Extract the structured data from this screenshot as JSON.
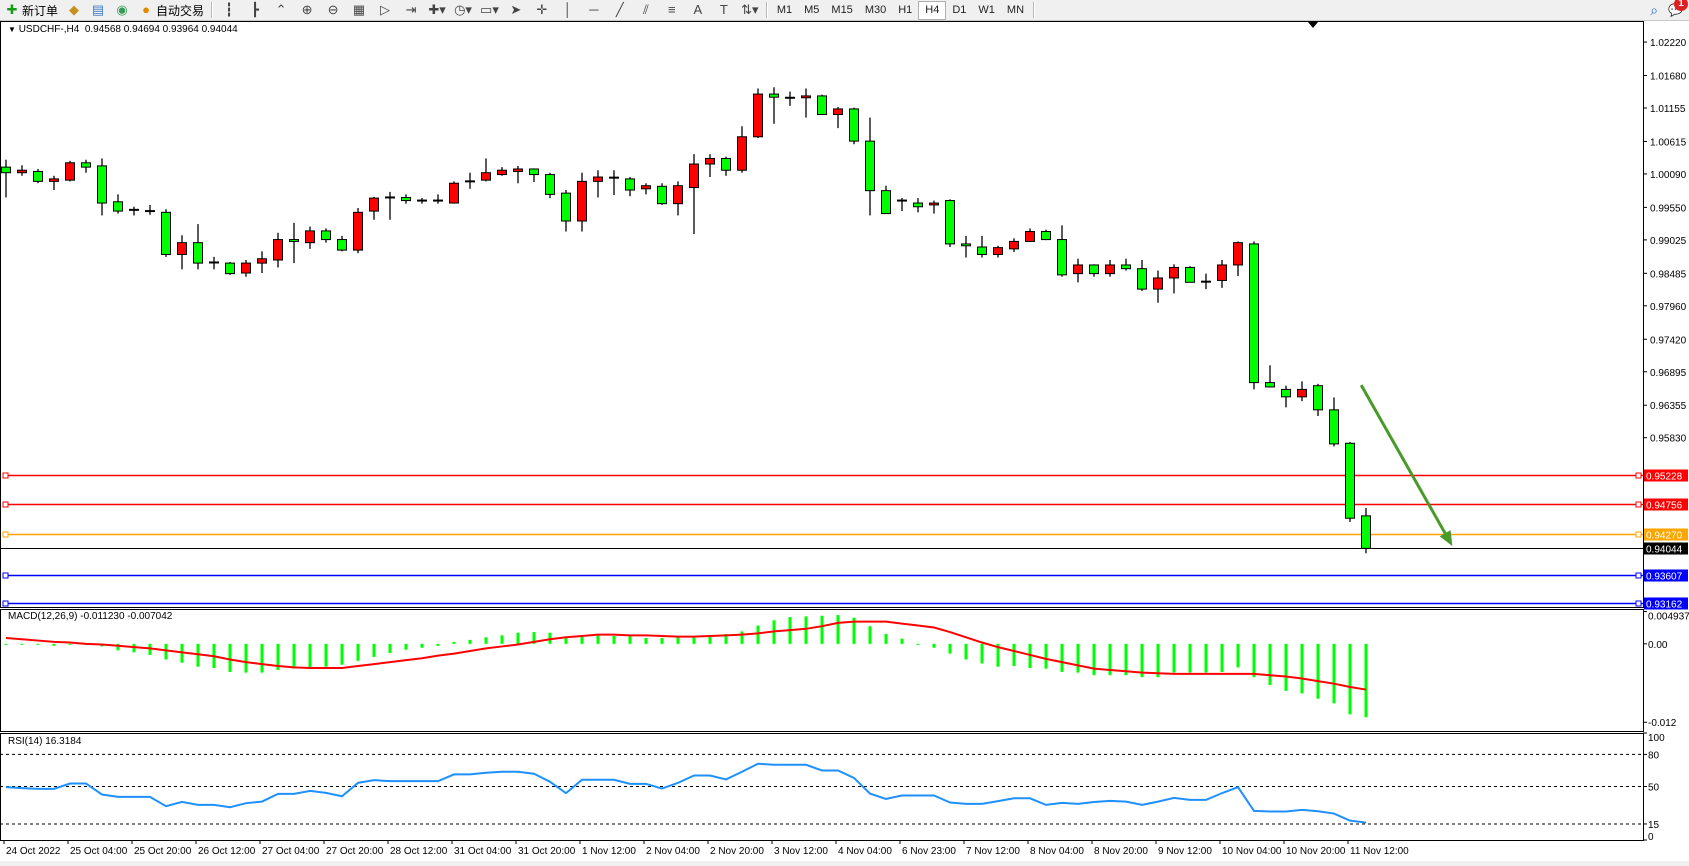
{
  "toolbar": {
    "items": [
      {
        "name": "new-order-button",
        "icon": "new-order-icon",
        "glyph": "✚",
        "color": "#1a9a1a",
        "label": "新订单"
      },
      {
        "name": "metaeditor-button",
        "icon": "metaeditor-icon",
        "glyph": "◆",
        "color": "#c89020",
        "label": ""
      },
      {
        "name": "terminal-button",
        "icon": "terminal-icon",
        "glyph": "▤",
        "color": "#3a7ac8",
        "label": ""
      },
      {
        "name": "signals-button",
        "icon": "signals-icon",
        "glyph": "◉",
        "color": "#3a9a5a",
        "label": ""
      },
      {
        "name": "autotrading-button",
        "icon": "autotrading-icon",
        "glyph": "●",
        "color": "#e08a00",
        "label": "自动交易"
      }
    ],
    "chart_tools": [
      {
        "name": "bar-chart-button",
        "icon": "bar-chart-icon",
        "glyph": "┇"
      },
      {
        "name": "candlestick-button",
        "icon": "candlestick-icon",
        "glyph": "┣"
      },
      {
        "name": "line-chart-button",
        "icon": "line-chart-icon",
        "glyph": "⌃"
      },
      {
        "name": "zoom-in-button",
        "icon": "zoom-in-icon",
        "glyph": "⊕"
      },
      {
        "name": "zoom-out-button",
        "icon": "zoom-out-icon",
        "glyph": "⊖"
      },
      {
        "name": "tile-windows-button",
        "icon": "tile-windows-icon",
        "glyph": "▦"
      },
      {
        "name": "auto-scroll-button",
        "icon": "auto-scroll-icon",
        "glyph": "▷"
      },
      {
        "name": "chart-shift-button",
        "icon": "chart-shift-icon",
        "glyph": "⇥"
      },
      {
        "name": "indicators-button",
        "icon": "indicators-icon",
        "glyph": "✚▾"
      },
      {
        "name": "periods-button",
        "icon": "clock-icon",
        "glyph": "◷▾"
      },
      {
        "name": "templates-button",
        "icon": "templates-icon",
        "glyph": "▭▾"
      },
      {
        "name": "cursor-button",
        "icon": "cursor-icon",
        "glyph": "➤"
      },
      {
        "name": "crosshair-button",
        "icon": "crosshair-icon",
        "glyph": "✛"
      },
      {
        "name": "vertical-line-button",
        "icon": "vertical-line-icon",
        "glyph": "│"
      },
      {
        "name": "horizontal-line-button",
        "icon": "horizontal-line-icon",
        "glyph": "─"
      },
      {
        "name": "trendline-button",
        "icon": "trendline-icon",
        "glyph": "╱"
      },
      {
        "name": "equidistant-channel-button",
        "icon": "channel-icon",
        "glyph": "⫽"
      },
      {
        "name": "fibonacci-button",
        "icon": "fibonacci-icon",
        "glyph": "≡"
      },
      {
        "name": "text-button",
        "icon": "text-icon",
        "glyph": "A"
      },
      {
        "name": "text-label-button",
        "icon": "text-label-icon",
        "glyph": "T"
      },
      {
        "name": "arrows-button",
        "icon": "arrows-icon",
        "glyph": "⇅▾"
      }
    ],
    "timeframes": [
      "M1",
      "M5",
      "M15",
      "M30",
      "H1",
      "H4",
      "D1",
      "W1",
      "MN"
    ],
    "active_timeframe": "H4",
    "notification_count": "1"
  },
  "chart": {
    "symbol_info": "USDCHF-,H4  0.94568 0.94694 0.93964 0.94044",
    "bull_color": "#ff0000",
    "bear_color": "#00ff00",
    "price_ticks": [
      "1.02220",
      "1.01680",
      "1.01155",
      "1.00615",
      "1.00090",
      "0.99550",
      "0.99025",
      "0.98485",
      "0.97960",
      "0.97420",
      "0.96895",
      "0.96355",
      "0.95830"
    ],
    "ylim": [
      0.93096,
      1.0256
    ],
    "hlines": [
      {
        "price": 0.95228,
        "label": "0.95228",
        "color": "#ff0000"
      },
      {
        "price": 0.94756,
        "label": "0.94756",
        "color": "#ff0000"
      },
      {
        "price": 0.9427,
        "label": "0.94270",
        "color": "#ffa500"
      },
      {
        "price": 0.93607,
        "label": "0.93607",
        "color": "#0000ff"
      },
      {
        "price": 0.93162,
        "label": "0.93162",
        "color": "#0000ff"
      }
    ],
    "bid": {
      "price": 0.94044,
      "label": "0.94044"
    },
    "arrow": {
      "from": [
        84.7,
        0.9668
      ],
      "to": [
        90.4,
        0.9408
      ],
      "color": "#4a9a2a"
    },
    "time_labels": [
      "24 Oct 2022",
      "25 Oct 04:00",
      "25 Oct 20:00",
      "26 Oct 12:00",
      "27 Oct 04:00",
      "27 Oct 20:00",
      "28 Oct 12:00",
      "31 Oct 04:00",
      "31 Oct 20:00",
      "1 Nov 12:00",
      "2 Nov 04:00",
      "2 Nov 20:00",
      "3 Nov 12:00",
      "4 Nov 04:00",
      "6 Nov 23:00",
      "7 Nov 12:00",
      "8 Nov 04:00",
      "8 Nov 20:00",
      "9 Nov 12:00",
      "10 Nov 04:00",
      "10 Nov 20:00",
      "11 Nov 12:00"
    ]
  },
  "chart_data": {
    "type": "candlestick",
    "ohlc": [
      [
        1.002,
        1.0032,
        0.9971,
        1.0011
      ],
      [
        1.0011,
        1.0023,
        1.0006,
        1.0015
      ],
      [
        1.0013,
        1.0017,
        0.9994,
        0.9997
      ],
      [
        0.9997,
        1.0006,
        0.9983,
        1.0001
      ],
      [
        0.9999,
        1.003,
        0.9997,
        1.0027
      ],
      [
        1.0027,
        1.0032,
        1.0011,
        1.002
      ],
      [
        1.0022,
        1.0034,
        0.9942,
        0.9962
      ],
      [
        0.9964,
        0.9976,
        0.9945,
        0.9949
      ],
      [
        0.995,
        0.9956,
        0.9942,
        0.9951
      ],
      [
        0.9949,
        0.9959,
        0.9943,
        0.9949
      ],
      [
        0.9947,
        0.9952,
        0.9875,
        0.9879
      ],
      [
        0.9879,
        0.991,
        0.9855,
        0.9898
      ],
      [
        0.9898,
        0.9928,
        0.9855,
        0.9865
      ],
      [
        0.9865,
        0.9875,
        0.9855,
        0.9866
      ],
      [
        0.9865,
        0.9867,
        0.9846,
        0.9848
      ],
      [
        0.9849,
        0.987,
        0.9843,
        0.9865
      ],
      [
        0.9865,
        0.9884,
        0.9849,
        0.9872
      ],
      [
        0.987,
        0.9914,
        0.9858,
        0.9903
      ],
      [
        0.9903,
        0.993,
        0.9865,
        0.99
      ],
      [
        0.9898,
        0.9924,
        0.9888,
        0.9917
      ],
      [
        0.9917,
        0.9921,
        0.9898,
        0.9903
      ],
      [
        0.9903,
        0.9909,
        0.9884,
        0.9886
      ],
      [
        0.9886,
        0.9954,
        0.9881,
        0.9947
      ],
      [
        0.9949,
        0.9972,
        0.9935,
        0.997
      ],
      [
        0.997,
        0.998,
        0.9935,
        0.9971
      ],
      [
        0.9971,
        0.9976,
        0.9961,
        0.9966
      ],
      [
        0.9966,
        0.997,
        0.9961,
        0.9966
      ],
      [
        0.9966,
        0.9976,
        0.9961,
        0.9966
      ],
      [
        0.9962,
        0.9997,
        0.9961,
        0.9994
      ],
      [
        0.9997,
        1.0011,
        0.9985,
        0.9997
      ],
      [
        0.9999,
        1.0034,
        0.9997,
        1.0011
      ],
      [
        1.0008,
        1.002,
        1.0006,
        1.0015
      ],
      [
        1.0013,
        1.0022,
        0.9994,
        1.0017
      ],
      [
        1.0017,
        1.0018,
        0.9996,
        1.0008
      ],
      [
        1.0008,
        1.0011,
        0.997,
        0.9976
      ],
      [
        0.9978,
        0.9983,
        0.9916,
        0.9933
      ],
      [
        0.9933,
        1.0011,
        0.9916,
        0.9997
      ],
      [
        0.9997,
        1.0015,
        0.9971,
        1.0004
      ],
      [
        1.0003,
        1.0015,
        0.9975,
        1.0003
      ],
      [
        1.0001,
        1.0004,
        0.9973,
        0.9983
      ],
      [
        0.9985,
        0.9994,
        0.9976,
        0.999
      ],
      [
        0.9989,
        0.9994,
        0.9959,
        0.9961
      ],
      [
        0.9961,
        0.9997,
        0.9942,
        0.999
      ],
      [
        0.9987,
        1.0041,
        0.9912,
        1.0025
      ],
      [
        1.0025,
        1.0041,
        1.0004,
        1.0034
      ],
      [
        1.0034,
        1.0037,
        1.0006,
        1.0015
      ],
      [
        1.0015,
        1.0086,
        1.0011,
        1.0069
      ],
      [
        1.0069,
        1.0147,
        1.0067,
        1.0138
      ],
      [
        1.0138,
        1.0149,
        1.009,
        1.0133
      ],
      [
        1.0132,
        1.0142,
        1.0119,
        1.0132
      ],
      [
        1.0132,
        1.0147,
        1.01,
        1.0135
      ],
      [
        1.0135,
        1.0137,
        1.0105,
        1.0105
      ],
      [
        1.0105,
        1.0117,
        1.0083,
        1.0114
      ],
      [
        1.0114,
        1.0116,
        1.0057,
        1.0062
      ],
      [
        1.0062,
        1.01,
        0.9942,
        0.9982
      ],
      [
        0.9982,
        0.999,
        0.9945,
        0.9945
      ],
      [
        0.9966,
        0.997,
        0.9949,
        0.9966
      ],
      [
        0.9962,
        0.997,
        0.9947,
        0.9956
      ],
      [
        0.9959,
        0.9966,
        0.9945,
        0.9962
      ],
      [
        0.9966,
        0.9968,
        0.9891,
        0.9896
      ],
      [
        0.9896,
        0.9909,
        0.9874,
        0.9893
      ],
      [
        0.9891,
        0.9909,
        0.9874,
        0.9879
      ],
      [
        0.9879,
        0.9893,
        0.9874,
        0.989
      ],
      [
        0.9888,
        0.9905,
        0.9883,
        0.99
      ],
      [
        0.99,
        0.9921,
        0.9899,
        0.9916
      ],
      [
        0.9916,
        0.9919,
        0.9902,
        0.9903
      ],
      [
        0.9903,
        0.9926,
        0.9843,
        0.9846
      ],
      [
        0.9848,
        0.9872,
        0.9834,
        0.9862
      ],
      [
        0.9862,
        0.9863,
        0.9843,
        0.9848
      ],
      [
        0.9848,
        0.987,
        0.9843,
        0.9862
      ],
      [
        0.9862,
        0.9872,
        0.9853,
        0.9856
      ],
      [
        0.9856,
        0.987,
        0.982,
        0.9823
      ],
      [
        0.9823,
        0.9853,
        0.9801,
        0.9841
      ],
      [
        0.9841,
        0.9863,
        0.9816,
        0.9858
      ],
      [
        0.9858,
        0.986,
        0.9834,
        0.9834
      ],
      [
        0.9835,
        0.9848,
        0.9823,
        0.9835
      ],
      [
        0.9837,
        0.987,
        0.9825,
        0.9862
      ],
      [
        0.9862,
        0.99,
        0.9844,
        0.9898
      ],
      [
        0.9896,
        0.99,
        0.9661,
        0.9672
      ],
      [
        0.9672,
        0.97,
        0.9664,
        0.9665
      ],
      [
        0.9661,
        0.9667,
        0.9632,
        0.9649
      ],
      [
        0.9649,
        0.9674,
        0.9642,
        0.9661
      ],
      [
        0.9667,
        0.967,
        0.9618,
        0.9628
      ],
      [
        0.9628,
        0.9648,
        0.9569,
        0.9573
      ],
      [
        0.9574,
        0.9576,
        0.9447,
        0.9453
      ],
      [
        0.94568,
        0.94694,
        0.93964,
        0.94044
      ]
    ],
    "macd": {
      "label": "MACD(12,26,9) -0.011230 -0.007042",
      "ticks": [
        "0.004937",
        "0.00",
        "-0.012"
      ],
      "tick_values": [
        0.004937,
        0,
        -0.012
      ],
      "ylim": [
        -0.01334,
        0.00533
      ],
      "hist_color": "#00ff00",
      "signal_color": "#ff0000",
      "histogram": [
        -0.0001,
        0,
        -0.0001,
        -0.0003,
        -0.0001,
        0,
        -0.0004,
        -0.001,
        -0.0013,
        -0.0017,
        -0.0024,
        -0.0029,
        -0.0035,
        -0.0037,
        -0.0043,
        -0.0044,
        -0.0044,
        -0.004,
        -0.0038,
        -0.0037,
        -0.0035,
        -0.0032,
        -0.0026,
        -0.002,
        -0.0014,
        -0.0009,
        -0.0006,
        -0.0003,
        0.0003,
        0.0006,
        0.001,
        0.0013,
        0.0017,
        0.0018,
        0.0017,
        0.0011,
        0.0012,
        0.0013,
        0.0012,
        0.0012,
        0.0009,
        0.0009,
        0.0011,
        0.0011,
        0.0012,
        0.0015,
        0.0019,
        0.0028,
        0.0036,
        0.0041,
        0.0042,
        0.0043,
        0.0044,
        0.004,
        0.0027,
        0.0015,
        0.0008,
        0,
        -0.0006,
        -0.0015,
        -0.0024,
        -0.003,
        -0.0035,
        -0.0034,
        -0.0037,
        -0.0038,
        -0.0043,
        -0.0044,
        -0.0048,
        -0.0048,
        -0.0048,
        -0.0051,
        -0.0051,
        -0.0044,
        -0.0044,
        -0.0044,
        -0.0043,
        -0.0036,
        -0.0051,
        -0.0063,
        -0.0072,
        -0.0076,
        -0.0084,
        -0.0091,
        -0.0108,
        -0.01123
      ],
      "signal": [
        0.0009,
        0.0007,
        0.0005,
        0.0003,
        0.0002,
        0,
        -0.0001,
        -0.0003,
        -0.0005,
        -0.0007,
        -0.001,
        -0.0013,
        -0.0016,
        -0.0019,
        -0.0024,
        -0.0028,
        -0.0031,
        -0.0034,
        -0.0036,
        -0.0037,
        -0.0037,
        -0.0037,
        -0.0034,
        -0.0031,
        -0.0028,
        -0.0025,
        -0.0022,
        -0.0018,
        -0.0015,
        -0.0011,
        -0.0007,
        -0.0004,
        -0.0001,
        0.0003,
        0.0007,
        0.001,
        0.0012,
        0.0014,
        0.0014,
        0.0013,
        0.0013,
        0.0012,
        0.0011,
        0.0011,
        0.0012,
        0.0013,
        0.0014,
        0.0016,
        0.0019,
        0.0021,
        0.0023,
        0.0027,
        0.0032,
        0.0034,
        0.0034,
        0.0034,
        0.0031,
        0.0028,
        0.0025,
        0.0018,
        0.001,
        0.0002,
        -0.0005,
        -0.0011,
        -0.0017,
        -0.0023,
        -0.0028,
        -0.0033,
        -0.0038,
        -0.004,
        -0.0042,
        -0.0044,
        -0.0045,
        -0.0046,
        -0.0046,
        -0.0046,
        -0.0046,
        -0.0046,
        -0.0046,
        -0.0048,
        -0.005,
        -0.0053,
        -0.0057,
        -0.0061,
        -0.0066,
        -0.007
      ]
    },
    "rsi": {
      "label": "RSI(14) 16.3184",
      "ticks": [
        "100",
        "80",
        "50",
        "15",
        "0"
      ],
      "tick_values": [
        100,
        80,
        50,
        15,
        0
      ],
      "levels": [
        80,
        50,
        15
      ],
      "ylim": [
        0,
        100
      ],
      "color": "#1e90ff",
      "values": [
        49.4,
        48.5,
        47.8,
        47.8,
        52.8,
        52.8,
        42.5,
        40.3,
        40.3,
        40.3,
        31.6,
        35.6,
        32.8,
        32.8,
        30.6,
        34.4,
        35.9,
        43.1,
        43.1,
        45.9,
        44,
        40.9,
        53.4,
        55.9,
        55,
        55,
        55,
        55,
        61.3,
        61.3,
        62.8,
        63.8,
        63.8,
        61.9,
        54.4,
        43.8,
        56.3,
        56.3,
        56.3,
        52.5,
        52.5,
        48.1,
        53.4,
        60.3,
        60.3,
        56.6,
        63.8,
        71.3,
        70.3,
        70.3,
        70.3,
        65,
        65,
        58,
        43.4,
        38.4,
        41.6,
        41.6,
        41.6,
        35,
        33.8,
        33.8,
        36.3,
        39,
        39,
        32.8,
        34.7,
        33.8,
        35.5,
        36.6,
        35.9,
        32.8,
        35.9,
        39.4,
        37.5,
        37.5,
        43.8,
        49.4,
        27.2,
        26.6,
        26.6,
        28.1,
        26.9,
        24.7,
        18.1,
        16.3
      ]
    }
  }
}
